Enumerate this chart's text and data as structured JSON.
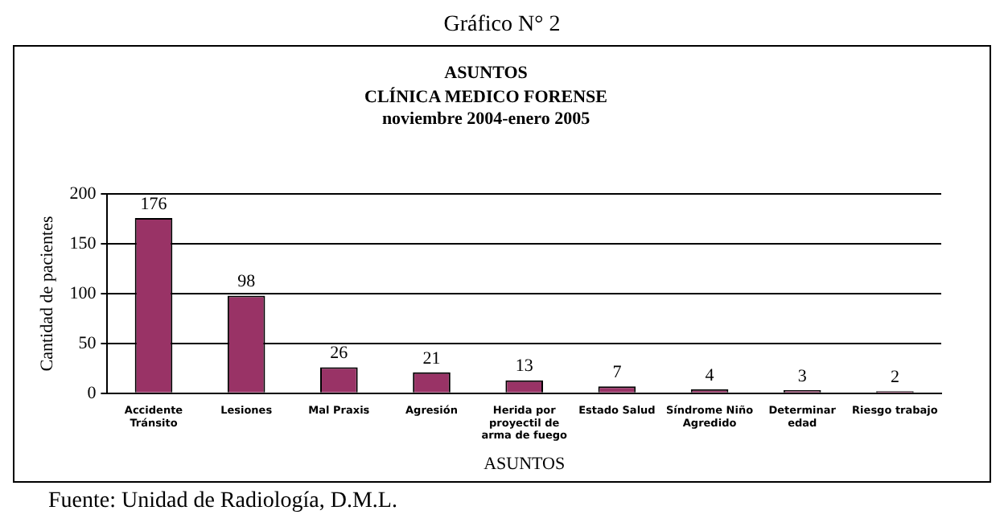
{
  "chart_data": {
    "type": "bar",
    "title": "ASUNTOS",
    "subtitle": "CLÍNICA MEDICO FORENSE\nnoviembre 2004-enero 2005",
    "xlabel": "ASUNTOS",
    "ylabel": "Cantidad de pacientes",
    "annotations": [
      "Gráfico N° 2",
      "Fuente: Unidad de Radiología, D.M.L."
    ],
    "categories": [
      "Accidente Tránsito",
      "Lesiones",
      "Mal Praxis",
      "Agresión",
      "Herida por proyectil de arma de fuego",
      "Estado Salud",
      "Síndrome Niño Agredido",
      "Determinar edad",
      "Riesgo trabajo"
    ],
    "values": [
      176,
      98,
      26,
      21,
      13,
      7,
      4,
      3,
      2
    ],
    "color": "#993366",
    "ylim": [
      0,
      200
    ],
    "yticks": [
      0,
      50,
      100,
      150,
      200
    ],
    "grid": "y",
    "legend": false,
    "data_labels": true
  }
}
